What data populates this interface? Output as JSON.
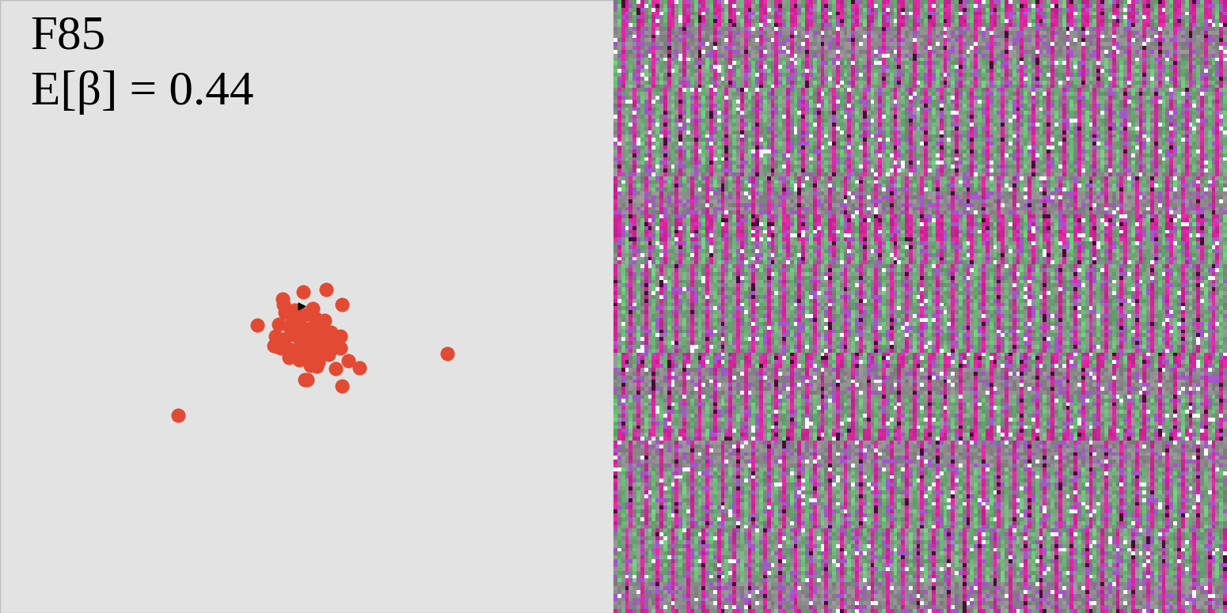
{
  "chart_data": {
    "type": "scatter",
    "texts": [
      "F85",
      "E[β] = 0.44"
    ],
    "x": [
      565,
      225,
      412,
      432,
      325,
      432,
      454,
      424,
      385,
      388,
      357,
      383,
      440,
      400,
      346,
      430,
      360,
      372,
      385,
      398,
      410,
      352,
      365,
      378,
      392,
      405,
      418,
      348,
      360,
      375,
      388,
      400,
      413,
      425,
      355,
      368,
      380,
      395,
      408,
      420,
      365,
      378,
      390,
      402,
      372,
      395,
      350,
      430,
      415,
      385,
      358,
      392,
      406,
      370,
      383,
      396
    ],
    "y": [
      447,
      525,
      366,
      385,
      411,
      488,
      465,
      466,
      480,
      480,
      378,
      369,
      456,
      463,
      437,
      440,
      395,
      400,
      398,
      402,
      405,
      410,
      412,
      410,
      415,
      418,
      420,
      425,
      428,
      425,
      430,
      428,
      432,
      430,
      440,
      442,
      438,
      442,
      445,
      440,
      452,
      455,
      450,
      458,
      392,
      390,
      438,
      425,
      448,
      445,
      385,
      462,
      435,
      418,
      420,
      425
    ],
    "agent": {
      "x": 381,
      "y": 387,
      "marker": ">",
      "color": "#000000"
    },
    "color": "#e34a33",
    "marker": "o",
    "xlim": [
      0,
      775
    ],
    "ylim": [
      775,
      0
    ],
    "tick_labels": false,
    "grid": false
  }
}
